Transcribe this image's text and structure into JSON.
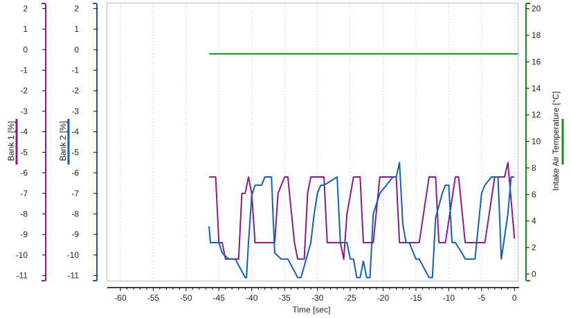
{
  "chart_data": {
    "type": "line",
    "xlabel": "Time [sec]",
    "xlim": [
      -62,
      0.5
    ],
    "xticks": [
      -60,
      -55,
      -50,
      -45,
      -40,
      -35,
      -30,
      -25,
      -20,
      -15,
      -10,
      -5,
      0
    ],
    "axes": [
      {
        "id": "bank1",
        "label": "Bank 1 [%]",
        "color": "#8a1a8a",
        "ylim": [
          -11.25,
          2.25
        ],
        "ticks": [
          2,
          1,
          0,
          -1,
          -2,
          -3,
          -4,
          -5,
          -6,
          -7,
          -8,
          -9,
          -10,
          -11
        ]
      },
      {
        "id": "bank2",
        "label": "Bank 2 [%]",
        "color": "#1060b0",
        "ylim": [
          -11.25,
          2.25
        ],
        "ticks": [
          2,
          1,
          0,
          -1,
          -2,
          -3,
          -4,
          -5,
          -6,
          -7,
          -8,
          -9,
          -10,
          -11
        ]
      },
      {
        "id": "iat",
        "label": "Intake Air Temperature [°C]",
        "color": "#1a8a1a",
        "ylim": [
          -0.5,
          20.4
        ],
        "ticks": [
          20,
          18,
          16,
          14,
          12,
          10,
          8,
          6,
          4,
          2,
          0
        ]
      }
    ],
    "series": [
      {
        "axis": "iat",
        "color": "#1a8a1a",
        "x": [
          -46.5,
          0.5
        ],
        "y": [
          16.6,
          16.6
        ]
      },
      {
        "axis": "bank1",
        "color": "#8a1a8a",
        "x": [
          -46.5,
          -45.5,
          -45,
          -44.5,
          -44,
          -43,
          -42,
          -41.5,
          -41,
          -40.5,
          -40,
          -39.5,
          -38.5,
          -38.5,
          -37.5,
          -37.5,
          -36.5,
          -36,
          -35,
          -34.5,
          -33.5,
          -33,
          -32.5,
          -32,
          -31.5,
          -31,
          -30,
          -29,
          -28.5,
          -27.5,
          -26.5,
          -26,
          -25.5,
          -24.5,
          -23.5,
          -23,
          -22,
          -21.5,
          -20.5,
          -19.5,
          -18,
          -17.5,
          -16.5,
          -15.5,
          -14.5,
          -13,
          -12,
          -11.5,
          -10.5,
          -9,
          -8.5,
          -7.5,
          -6,
          -5.5,
          -4.5,
          -3,
          -2.5,
          -1.5,
          -1,
          0
        ],
        "y": [
          -6.2,
          -6.2,
          -9.4,
          -9.4,
          -10.2,
          -10.2,
          -10.2,
          -7,
          -7,
          -6.2,
          -7,
          -9.4,
          -9.4,
          -9.4,
          -9.4,
          -9.4,
          -9.4,
          -7,
          -6.2,
          -6.2,
          -9.4,
          -10.2,
          -10.2,
          -10.2,
          -7,
          -6.2,
          -6.2,
          -6.2,
          -9.4,
          -9.4,
          -9.4,
          -10.2,
          -8,
          -6.2,
          -6.2,
          -9.4,
          -9.4,
          -9.4,
          -6.2,
          -6.2,
          -6.2,
          -9.4,
          -9.4,
          -9.4,
          -9.4,
          -6.2,
          -6.2,
          -9.4,
          -9.4,
          -6.2,
          -6.2,
          -9.4,
          -9.4,
          -9.4,
          -9.4,
          -6.2,
          -6.2,
          -6.2,
          -5.5,
          -9.2
        ]
      },
      {
        "axis": "bank2",
        "color": "#1060b0",
        "x": [
          -46.5,
          -46.3,
          -45,
          -44.5,
          -43.5,
          -42.5,
          -41,
          -40.8,
          -40.5,
          -40,
          -39.5,
          -38.5,
          -38,
          -37,
          -36.5,
          -35.5,
          -34.5,
          -33,
          -32.5,
          -31,
          -30.5,
          -30,
          -29.5,
          -29,
          -27,
          -26.5,
          -25.5,
          -25,
          -24.5,
          -24,
          -23.5,
          -23,
          -22.5,
          -22,
          -21.5,
          -20.5,
          -19.5,
          -18.5,
          -18,
          -17.5,
          -17,
          -16.5,
          -16,
          -15,
          -14.5,
          -13,
          -12.5,
          -12,
          -11,
          -10.5,
          -10,
          -9.5,
          -9,
          -8,
          -7.5,
          -7,
          -6,
          -5,
          -4.5,
          -3.5,
          -2.5,
          -2,
          -1,
          -0.5,
          0
        ],
        "y": [
          -8.6,
          -9.4,
          -9.4,
          -9.9,
          -10.2,
          -10.2,
          -11.1,
          -11.1,
          -9.4,
          -7.1,
          -6.6,
          -6.6,
          -6.2,
          -6.2,
          -9.9,
          -10.2,
          -10.2,
          -11.1,
          -11.1,
          -9.4,
          -8,
          -7,
          -6.6,
          -6.6,
          -6.2,
          -9.4,
          -9.4,
          -10.2,
          -10.2,
          -11.1,
          -11.1,
          -10.3,
          -11.1,
          -11.1,
          -8,
          -7,
          -6.6,
          -6.2,
          -6.2,
          -5.5,
          -8.5,
          -9.4,
          -9.4,
          -10.2,
          -10.2,
          -11.1,
          -11.1,
          -8.2,
          -7,
          -6.6,
          -6.6,
          -9.4,
          -9.4,
          -9.9,
          -10.2,
          -10.2,
          -10.2,
          -7,
          -6.6,
          -6.2,
          -6.2,
          -10.2,
          -8,
          -6.2,
          -6.2
        ]
      }
    ]
  }
}
